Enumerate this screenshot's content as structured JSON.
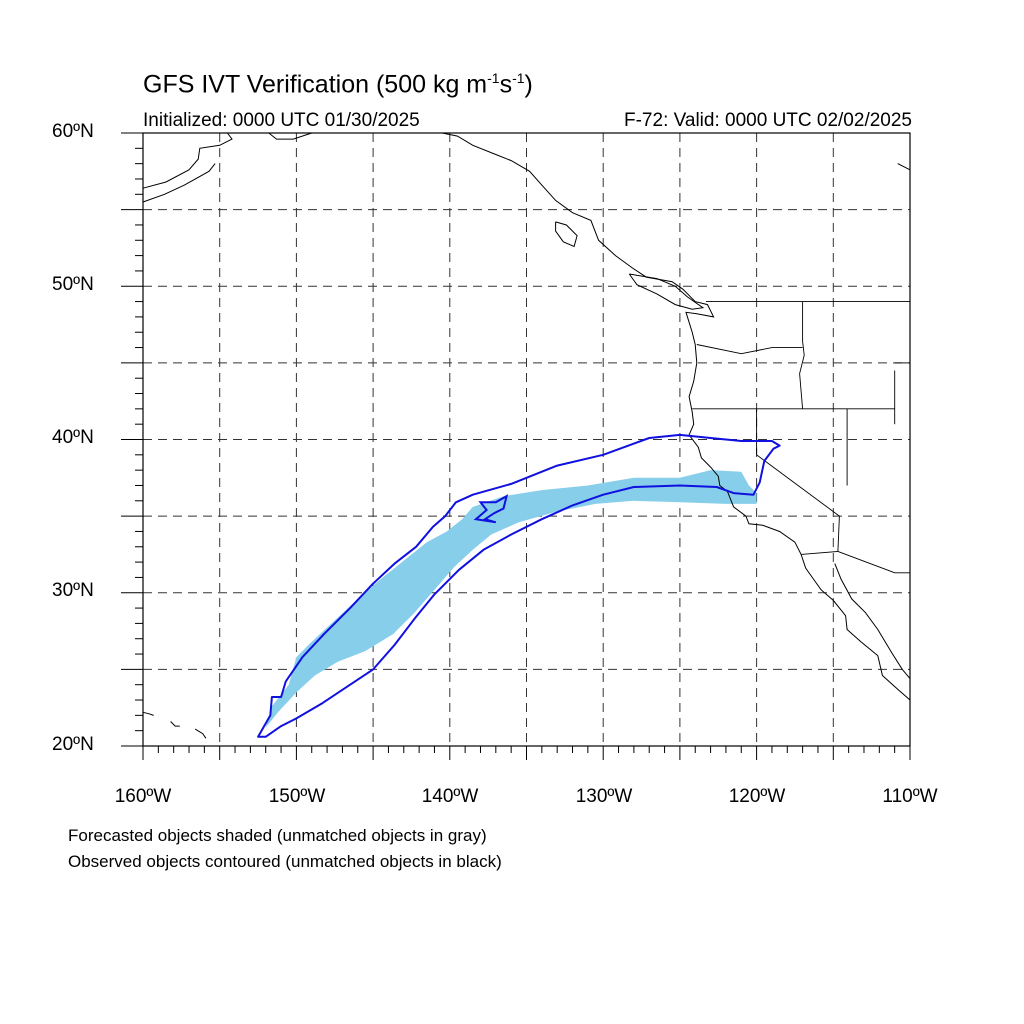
{
  "title": {
    "prefix": "GFS IVT Verification (500 kg m",
    "sup1": "-1",
    "mid": "s",
    "sup2": "-1",
    "suffix": ")"
  },
  "initialized": "Initialized: 0000 UTC 01/30/2025",
  "valid": "F-72: Valid: 0000 UTC 02/02/2025",
  "lat_labels": [
    "60ºN",
    "50ºN",
    "40ºN",
    "30ºN",
    "20ºN"
  ],
  "lon_labels": [
    "160ºW",
    "150ºW",
    "140ºW",
    "130ºW",
    "120ºW",
    "110ºW"
  ],
  "notes": [
    "Forecasted objects shaded (unmatched objects in gray)",
    "Observed objects contoured (unmatched objects in black)"
  ],
  "map_extent": {
    "lon_min": -160,
    "lon_max": -110,
    "lat_min": 20,
    "lat_max": 60
  },
  "colors": {
    "forecast_fill": "#87ceeb",
    "observed_contour": "#1010e0",
    "coastline": "#000000",
    "grid": "#333333"
  },
  "forecast_object": {
    "color_name": "sky blue",
    "outline_lonlat": [
      [
        -152.0,
        21.2
      ],
      [
        -151.2,
        22.2
      ],
      [
        -150.0,
        23.5
      ],
      [
        -148.8,
        24.6
      ],
      [
        -147.3,
        25.5
      ],
      [
        -145.5,
        26.2
      ],
      [
        -143.7,
        27.3
      ],
      [
        -142.3,
        28.7
      ],
      [
        -141.0,
        30.2
      ],
      [
        -139.7,
        31.7
      ],
      [
        -138.5,
        32.8
      ],
      [
        -137.3,
        33.8
      ],
      [
        -135.5,
        34.6
      ],
      [
        -133.0,
        35.3
      ],
      [
        -130.5,
        35.8
      ],
      [
        -128.0,
        36.0
      ],
      [
        -125.0,
        35.9
      ],
      [
        -122.0,
        35.8
      ],
      [
        -120.0,
        35.8
      ],
      [
        -120.0,
        36.5
      ],
      [
        -120.5,
        37.0
      ],
      [
        -121.0,
        37.9
      ],
      [
        -123.0,
        38.0
      ],
      [
        -125.0,
        37.5
      ],
      [
        -128.0,
        37.5
      ],
      [
        -131.0,
        37.0
      ],
      [
        -134.0,
        36.7
      ],
      [
        -136.5,
        36.3
      ],
      [
        -138.5,
        35.6
      ],
      [
        -139.2,
        34.8
      ],
      [
        -140.2,
        34.0
      ],
      [
        -141.5,
        33.3
      ],
      [
        -143.0,
        32.1
      ],
      [
        -144.5,
        30.9
      ],
      [
        -146.0,
        29.6
      ],
      [
        -147.5,
        28.2
      ],
      [
        -149.0,
        26.8
      ],
      [
        -150.0,
        25.8
      ],
      [
        -150.5,
        24.0
      ],
      [
        -151.6,
        22.6
      ],
      [
        -152.0,
        21.2
      ]
    ]
  },
  "observed_objects": {
    "main_lonlat": [
      [
        -152.0,
        20.6
      ],
      [
        -151.0,
        21.3
      ],
      [
        -150.0,
        21.8
      ],
      [
        -148.3,
        22.8
      ],
      [
        -146.5,
        24.0
      ],
      [
        -145.0,
        25.0
      ],
      [
        -143.6,
        26.6
      ],
      [
        -142.3,
        28.3
      ],
      [
        -141.0,
        29.9
      ],
      [
        -139.4,
        31.5
      ],
      [
        -137.8,
        32.8
      ],
      [
        -136.0,
        33.8
      ],
      [
        -134.0,
        34.8
      ],
      [
        -132.0,
        35.7
      ],
      [
        -130.0,
        36.4
      ],
      [
        -128.0,
        36.9
      ],
      [
        -125.0,
        37.0
      ],
      [
        -122.6,
        36.9
      ],
      [
        -121.5,
        36.5
      ],
      [
        -120.2,
        36.4
      ],
      [
        -119.8,
        37.2
      ],
      [
        -119.5,
        38.6
      ],
      [
        -118.9,
        39.4
      ],
      [
        -118.5,
        39.6
      ],
      [
        -119.0,
        39.9
      ],
      [
        -121.0,
        39.9
      ],
      [
        -123.0,
        40.1
      ],
      [
        -125.0,
        40.3
      ],
      [
        -127.0,
        40.1
      ],
      [
        -130.0,
        39.0
      ],
      [
        -133.0,
        38.3
      ],
      [
        -136.0,
        37.1
      ],
      [
        -138.5,
        36.4
      ],
      [
        -139.6,
        35.9
      ],
      [
        -140.3,
        35.0
      ],
      [
        -141.1,
        34.3
      ],
      [
        -142.2,
        33.0
      ],
      [
        -143.6,
        31.9
      ],
      [
        -145.0,
        30.6
      ],
      [
        -146.5,
        29.0
      ],
      [
        -148.2,
        27.3
      ],
      [
        -149.6,
        25.8
      ],
      [
        -150.7,
        24.2
      ],
      [
        -151.0,
        23.2
      ],
      [
        -151.6,
        23.2
      ],
      [
        -151.7,
        22.0
      ],
      [
        -152.5,
        20.6
      ],
      [
        -152.0,
        20.6
      ]
    ],
    "inner_lonlat": [
      [
        -138.0,
        35.9
      ],
      [
        -137.0,
        35.9
      ],
      [
        -136.3,
        36.3
      ],
      [
        -136.5,
        35.5
      ],
      [
        -137.1,
        35.2
      ],
      [
        -137.7,
        34.8
      ],
      [
        -137.0,
        34.6
      ],
      [
        -138.3,
        34.8
      ],
      [
        -137.6,
        35.4
      ],
      [
        -138.0,
        35.9
      ]
    ]
  },
  "coastlines_lonlat": [
    [
      [
        -160.0,
        56.4
      ],
      [
        -158.5,
        56.8
      ],
      [
        -157.0,
        57.6
      ],
      [
        -156.4,
        58.3
      ],
      [
        -156.3,
        59.0
      ],
      [
        -155.0,
        59.2
      ],
      [
        -154.2,
        59.6
      ],
      [
        -154.5,
        60.0
      ]
    ],
    [
      [
        -160.0,
        55.5
      ],
      [
        -158.6,
        56.0
      ],
      [
        -157.3,
        56.6
      ],
      [
        -155.7,
        57.5
      ],
      [
        -155.3,
        58.0
      ]
    ],
    [
      [
        -151.8,
        60.0
      ],
      [
        -151.3,
        59.6
      ],
      [
        -150.2,
        59.6
      ],
      [
        -149.0,
        60.0
      ]
    ],
    [
      [
        -146.0,
        60.0
      ],
      [
        -144.5,
        60.0
      ]
    ],
    [
      [
        -140.5,
        60.0
      ],
      [
        -139.5,
        59.8
      ],
      [
        -138.5,
        59.2
      ],
      [
        -137.0,
        58.6
      ],
      [
        -136.0,
        58.2
      ],
      [
        -134.8,
        57.5
      ],
      [
        -134.0,
        56.6
      ],
      [
        -133.1,
        55.6
      ],
      [
        -132.0,
        54.8
      ],
      [
        -130.8,
        54.3
      ],
      [
        -130.3,
        53.0
      ],
      [
        -129.2,
        52.0
      ],
      [
        -128.1,
        51.2
      ],
      [
        -127.2,
        50.6
      ],
      [
        -125.5,
        50.3
      ],
      [
        -124.8,
        49.8
      ],
      [
        -124.0,
        49.0
      ],
      [
        -123.2,
        48.8
      ],
      [
        -122.8,
        48.0
      ],
      [
        -123.9,
        48.2
      ],
      [
        -124.6,
        48.3
      ],
      [
        -124.2,
        47.0
      ],
      [
        -124.0,
        46.2
      ],
      [
        -123.9,
        45.0
      ],
      [
        -124.1,
        43.8
      ],
      [
        -124.4,
        42.8
      ],
      [
        -124.2,
        41.8
      ],
      [
        -124.1,
        41.0
      ],
      [
        -124.4,
        40.3
      ],
      [
        -123.8,
        39.5
      ],
      [
        -123.6,
        38.8
      ],
      [
        -123.0,
        38.2
      ],
      [
        -122.5,
        37.6
      ],
      [
        -122.4,
        37.0
      ],
      [
        -121.9,
        36.6
      ],
      [
        -121.5,
        35.6
      ],
      [
        -120.7,
        35.0
      ],
      [
        -120.5,
        34.5
      ],
      [
        -119.6,
        34.4
      ],
      [
        -118.5,
        34.0
      ],
      [
        -117.5,
        33.3
      ],
      [
        -117.1,
        32.5
      ],
      [
        -116.8,
        31.6
      ],
      [
        -116.3,
        30.9
      ],
      [
        -115.8,
        30.2
      ],
      [
        -115.0,
        29.5
      ],
      [
        -114.2,
        28.5
      ],
      [
        -114.1,
        27.6
      ],
      [
        -113.2,
        26.8
      ],
      [
        -112.1,
        25.9
      ],
      [
        -111.8,
        24.6
      ],
      [
        -110.8,
        23.7
      ],
      [
        -110.0,
        23.0
      ]
    ],
    [
      [
        -114.9,
        31.9
      ],
      [
        -114.5,
        30.9
      ],
      [
        -113.8,
        29.6
      ],
      [
        -112.9,
        28.7
      ],
      [
        -112.1,
        27.6
      ],
      [
        -111.2,
        26.1
      ],
      [
        -110.5,
        25.0
      ],
      [
        -110.0,
        24.4
      ]
    ],
    [
      [
        -133.1,
        54.2
      ],
      [
        -132.4,
        54.0
      ],
      [
        -131.7,
        53.3
      ],
      [
        -131.9,
        52.6
      ],
      [
        -132.6,
        52.9
      ],
      [
        -133.1,
        53.6
      ],
      [
        -133.1,
        54.2
      ]
    ],
    [
      [
        -128.3,
        50.8
      ],
      [
        -126.5,
        50.5
      ],
      [
        -125.3,
        50.0
      ],
      [
        -124.5,
        49.3
      ],
      [
        -123.5,
        48.6
      ],
      [
        -124.2,
        48.5
      ],
      [
        -125.3,
        48.8
      ],
      [
        -126.5,
        49.5
      ],
      [
        -127.8,
        50.1
      ],
      [
        -128.3,
        50.8
      ]
    ],
    [
      [
        -110.8,
        58.0
      ],
      [
        -110.0,
        57.6
      ]
    ],
    [
      [
        -160.0,
        22.2
      ],
      [
        -159.6,
        22.1
      ],
      [
        -159.3,
        22.0
      ]
    ],
    [
      [
        -158.2,
        21.6
      ],
      [
        -157.9,
        21.3
      ],
      [
        -157.6,
        21.3
      ]
    ],
    [
      [
        -156.6,
        21.1
      ],
      [
        -156.1,
        20.8
      ],
      [
        -155.9,
        20.5
      ]
    ]
  ],
  "borders_lonlat": [
    [
      [
        -123.3,
        49.0
      ],
      [
        -110.0,
        49.0
      ]
    ],
    [
      [
        -124.2,
        42.0
      ],
      [
        -120.0,
        42.0
      ],
      [
        -117.0,
        42.0
      ],
      [
        -111.0,
        42.0
      ]
    ],
    [
      [
        -120.0,
        42.0
      ],
      [
        -120.0,
        39.0
      ],
      [
        -114.6,
        35.0
      ],
      [
        -114.7,
        32.7
      ],
      [
        -117.1,
        32.5
      ]
    ],
    [
      [
        -117.0,
        49.0
      ],
      [
        -117.0,
        46.4
      ],
      [
        -116.9,
        45.5
      ],
      [
        -117.2,
        44.3
      ],
      [
        -117.0,
        42.0
      ]
    ],
    [
      [
        -123.9,
        46.2
      ],
      [
        -121.0,
        45.6
      ],
      [
        -119.0,
        46.0
      ],
      [
        -117.0,
        46.0
      ]
    ],
    [
      [
        -114.1,
        42.0
      ],
      [
        -114.1,
        37.0
      ]
    ],
    [
      [
        -114.7,
        32.7
      ],
      [
        -111.0,
        31.3
      ],
      [
        -110.0,
        31.3
      ]
    ],
    [
      [
        -111.0,
        45.0
      ],
      [
        -110.0,
        45.0
      ]
    ],
    [
      [
        -111.0,
        44.5
      ],
      [
        -111.0,
        41.0
      ]
    ]
  ]
}
